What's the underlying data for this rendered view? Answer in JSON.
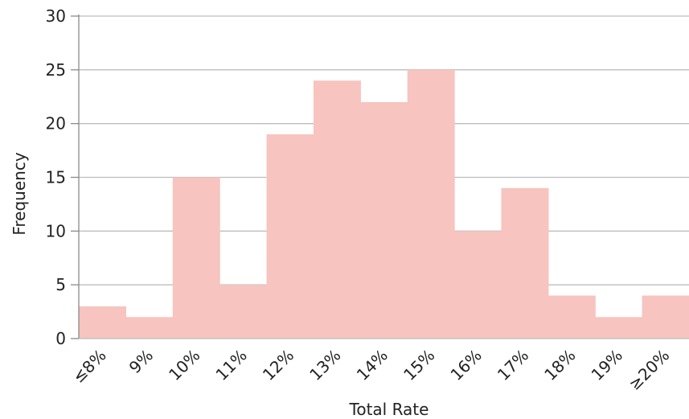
{
  "chart_data": {
    "type": "bar",
    "title": "",
    "xlabel": "Total Rate",
    "ylabel": "Frequency",
    "categories": [
      "≤8%",
      "9%",
      "10%",
      "11%",
      "12%",
      "13%",
      "14%",
      "15%",
      "16%",
      "17%",
      "18%",
      "19%",
      "≥20%"
    ],
    "values": [
      3,
      2,
      15,
      5,
      19,
      24,
      22,
      25,
      10,
      14,
      4,
      2,
      4
    ],
    "ylim": [
      0,
      30
    ],
    "yticks": [
      0,
      5,
      10,
      15,
      20,
      25,
      30
    ],
    "grid": true,
    "legend": "none",
    "colors": {
      "bar": "#f7c4c0",
      "grid": "#bdbdbd",
      "axis": "#8a8a8a",
      "text": "#222222"
    }
  }
}
